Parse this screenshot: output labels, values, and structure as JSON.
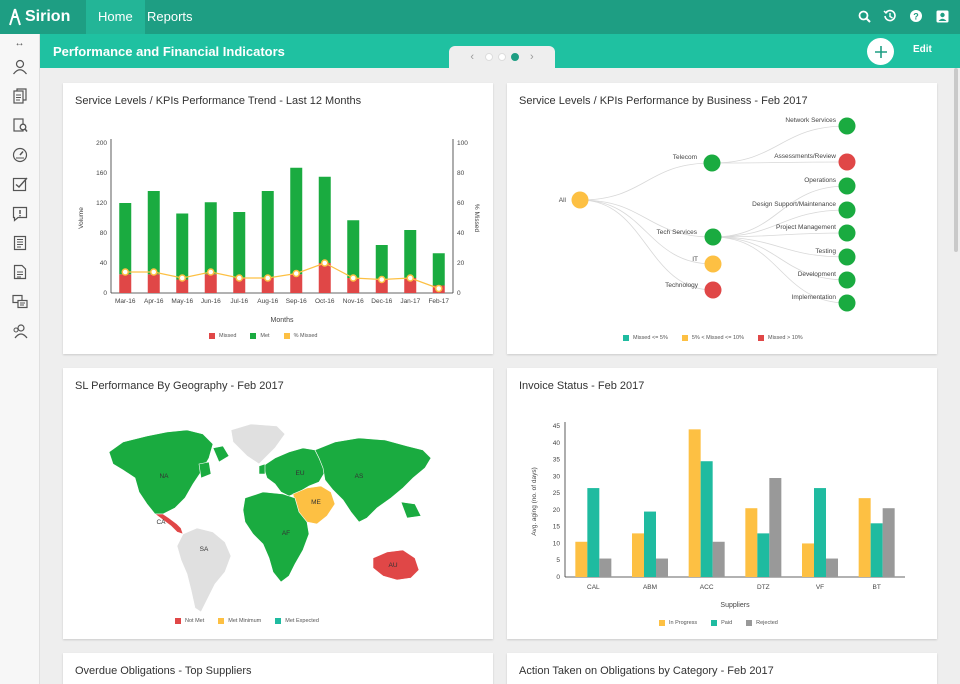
{
  "app": {
    "logo_text": "Sirion",
    "tabs": [
      {
        "label": "Home"
      },
      {
        "label": "Reports"
      }
    ]
  },
  "top_icons": [
    "search-icon",
    "history-icon",
    "help-icon",
    "user-profile-icon"
  ],
  "header": {
    "title": "Performance and Financial Indicators",
    "edit_label": "Edit",
    "pager": {
      "pages": 3,
      "active_page": 3
    }
  },
  "sidebar": {
    "toggle": "↔",
    "items": [
      "user-icon",
      "documents-icon",
      "search-document-icon",
      "dashboard-gauge-icon",
      "checklist-icon",
      "alert-message-icon",
      "invoice-icon",
      "report-icon",
      "discussion-icon",
      "team-icon"
    ]
  },
  "colors": {
    "missed": "#e04747",
    "met": "#1aab40",
    "pct_missed": "#fdc043",
    "paid": "#1fbba0",
    "rejected": "#999999"
  },
  "cards": {
    "trend": {
      "title": "Service Levels / KPIs Performance Trend - Last 12 Months",
      "legend": [
        "Missed",
        "Met",
        "% Missed"
      ]
    },
    "business": {
      "title": "Service Levels / KPIs Performance by Business - Feb 2017",
      "legend": [
        "Missed <= 5%",
        "5% < Missed <= 10%",
        "Missed > 10%"
      ]
    },
    "geo": {
      "title": "SL Performance By Geography - Feb 2017",
      "legend": [
        "Not Met",
        "Met Minimum",
        "Met Expected"
      ]
    },
    "invoice": {
      "title": "Invoice Status - Feb 2017",
      "legend": [
        "In Progress",
        "Paid",
        "Rejected"
      ]
    },
    "overdue": {
      "title": "Overdue Obligations - Top Suppliers"
    },
    "action": {
      "title": "Action Taken on Obligations by Category - Feb 2017"
    }
  },
  "chart_data": [
    {
      "type": "bar",
      "title": "Service Levels / KPIs Performance Trend - Last 12 Months",
      "xlabel": "Months",
      "ylabel": "Volume",
      "y2label": "% Missed",
      "ylim": [
        0,
        200
      ],
      "y2lim": [
        0,
        100
      ],
      "yticks": [
        0,
        40,
        80,
        120,
        160,
        200
      ],
      "y2ticks": [
        0,
        20,
        40,
        60,
        80,
        100
      ],
      "stacked": true,
      "categories": [
        "Mar-16",
        "Apr-16",
        "May-16",
        "Jun-16",
        "Jul-16",
        "Aug-16",
        "Sep-16",
        "Oct-16",
        "Nov-16",
        "Dec-16",
        "Jan-17",
        "Feb-17"
      ],
      "series": [
        {
          "name": "Missed",
          "values": [
            25,
            25,
            18,
            25,
            20,
            20,
            25,
            40,
            20,
            18,
            20,
            10
          ]
        },
        {
          "name": "Met",
          "values": [
            95,
            111,
            88,
            96,
            88,
            116,
            142,
            115,
            77,
            46,
            64,
            43
          ]
        },
        {
          "name": "% Missed",
          "axis": "right",
          "values": [
            14,
            14,
            10,
            14,
            10,
            10,
            13,
            20,
            10,
            9,
            10,
            3
          ]
        }
      ],
      "legend": "bottom"
    },
    {
      "type": "tree",
      "title": "Service Levels / KPIs Performance by Business - Feb 2017",
      "root": {
        "name": "All",
        "status": "5% < Missed <= 10%"
      },
      "children": [
        {
          "name": "Telecom",
          "status": "Missed <= 5%",
          "children": [
            {
              "name": "Network Services",
              "status": "Missed <= 5%"
            },
            {
              "name": "Assessments/Review",
              "status": "Missed > 10%"
            }
          ]
        },
        {
          "name": "Tech Services",
          "status": "Missed <= 5%",
          "children": [
            {
              "name": "Operations",
              "status": "Missed <= 5%"
            },
            {
              "name": "Design Support/Maintenance",
              "status": "Missed <= 5%"
            },
            {
              "name": "Project Management",
              "status": "Missed <= 5%"
            },
            {
              "name": "Testing",
              "status": "Missed <= 5%"
            },
            {
              "name": "Development",
              "status": "Missed <= 5%"
            },
            {
              "name": "Implementation",
              "status": "Missed <= 5%"
            }
          ]
        },
        {
          "name": "IT",
          "status": "5% < Missed <= 10%"
        },
        {
          "name": "Technology",
          "status": "Missed > 10%"
        }
      ],
      "legend": "bottom"
    },
    {
      "type": "map",
      "title": "SL Performance By Geography - Feb 2017",
      "regions": [
        {
          "name": "NA",
          "status": "Met Expected"
        },
        {
          "name": "CA",
          "status": "Not Met"
        },
        {
          "name": "SA",
          "status": "No Data"
        },
        {
          "name": "EU",
          "status": "Met Expected"
        },
        {
          "name": "AS",
          "status": "Met Expected"
        },
        {
          "name": "ME",
          "status": "Met Minimum"
        },
        {
          "name": "AF",
          "status": "Met Expected"
        },
        {
          "name": "AU",
          "status": "Not Met"
        }
      ],
      "legend": "bottom"
    },
    {
      "type": "bar",
      "title": "Invoice Status - Feb 2017",
      "xlabel": "Suppliers",
      "ylabel": "Avg. aging (no. of days)",
      "ylim": [
        0,
        45
      ],
      "yticks": [
        0,
        5,
        10,
        15,
        20,
        25,
        30,
        35,
        40,
        45
      ],
      "categories": [
        "CAL",
        "ABM",
        "ACC",
        "DTZ",
        "VF",
        "BT"
      ],
      "series": [
        {
          "name": "In Progress",
          "values": [
            10.5,
            13,
            44,
            20.5,
            10,
            23.5
          ]
        },
        {
          "name": "Paid",
          "values": [
            26.5,
            19.5,
            34.5,
            13,
            26.5,
            16
          ]
        },
        {
          "name": "Rejected",
          "values": [
            5.5,
            5.5,
            10.5,
            29.5,
            5.5,
            20.5
          ]
        }
      ],
      "legend": "bottom"
    }
  ]
}
